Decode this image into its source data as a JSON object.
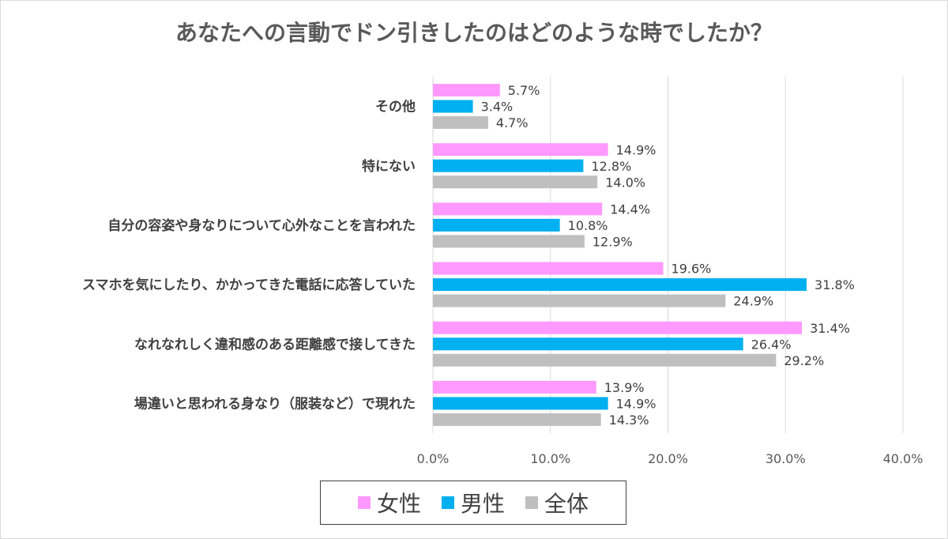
{
  "chart_data": {
    "type": "bar",
    "orientation": "horizontal",
    "title": "あなたへの言動でドン引きしたのはどのような時でしたか？",
    "categories": [
      "その他",
      "特にない",
      "自分の容姿や身なりについて心外なことを言われた",
      "スマホを気にしたり、かかってきた電話に応答していた",
      "なれなれしく違和感のある距離感で接してきた",
      "場違いと思われる身なり（服装など）で現れた"
    ],
    "series": [
      {
        "name": "女性",
        "color": "#ff99ff",
        "values": [
          5.7,
          14.9,
          14.4,
          19.6,
          31.4,
          13.9
        ],
        "labels": [
          "5.7%",
          "14.9%",
          "14.4%",
          "19.6%",
          "31.4%",
          "13.9%"
        ]
      },
      {
        "name": "男性",
        "color": "#00b0f0",
        "values": [
          3.4,
          12.8,
          10.8,
          31.8,
          26.4,
          14.9
        ],
        "labels": [
          "3.4%",
          "12.8%",
          "10.8%",
          "31.8%",
          "26.4%",
          "14.9%"
        ]
      },
      {
        "name": "全体",
        "color": "#bfbfbf",
        "values": [
          4.7,
          14.0,
          12.9,
          24.9,
          29.2,
          14.3
        ],
        "labels": [
          "4.7%",
          "14.0%",
          "12.9%",
          "24.9%",
          "29.2%",
          "14.3%"
        ]
      }
    ],
    "xlim": [
      0,
      40
    ],
    "xticks": [
      0,
      10,
      20,
      30,
      40
    ],
    "xtick_labels": [
      "0.0%",
      "10.0%",
      "20.0%",
      "30.0%",
      "40.0%"
    ],
    "grid": true,
    "legend_position": "bottom"
  }
}
